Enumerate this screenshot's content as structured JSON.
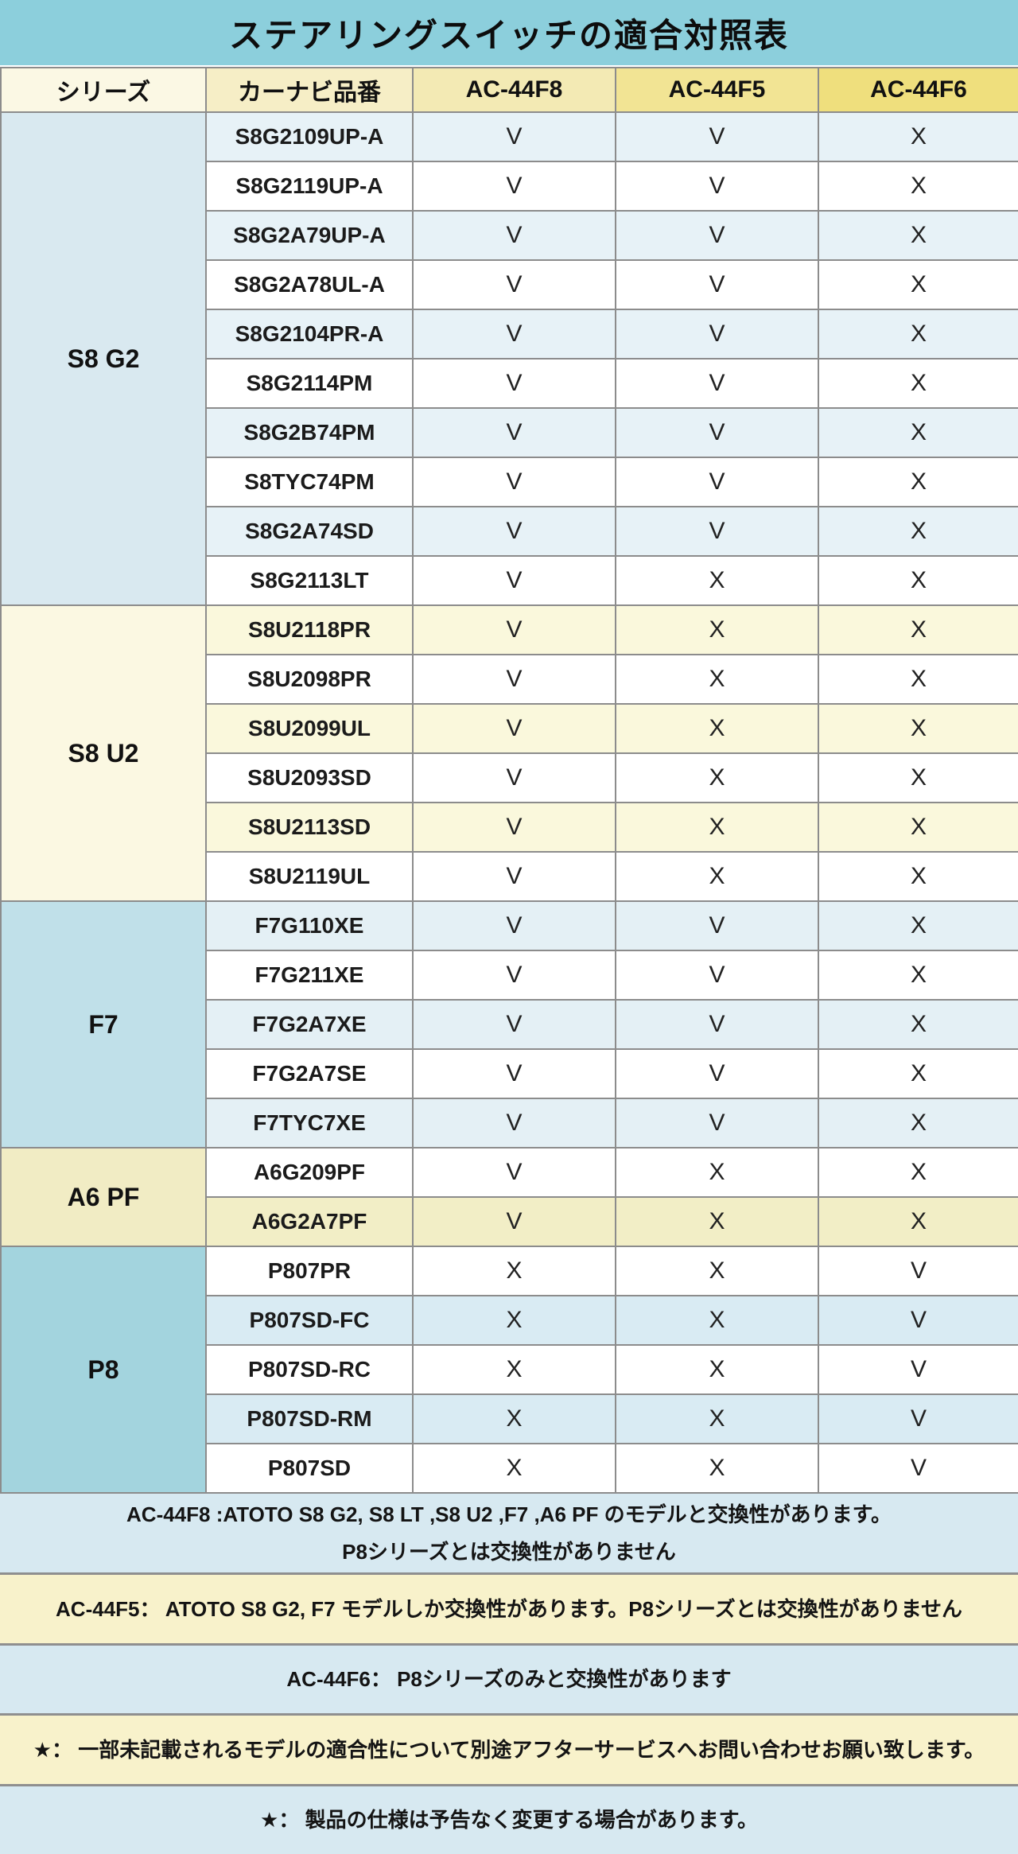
{
  "title": "ステアリングスイッチの適合対照表",
  "columns": [
    "シリーズ",
    "カーナビ品番",
    "AC-44F8",
    "AC-44F5",
    "AC-44F6"
  ],
  "colors": {
    "title_bar": "#8ccfdc",
    "header_cells": [
      "#fbf8e4",
      "#f6eec6",
      "#f3eab4",
      "#f2e494",
      "#efdf7d"
    ],
    "note_blue": "#d7e9f1",
    "note_cream": "#f8f2cb"
  },
  "groups": [
    {
      "series": "S8 G2",
      "group_color": "#d9e9f0",
      "stripe_color": "#e7f2f7",
      "stripe_first": true,
      "rows": [
        {
          "model": "S8G2109UP-A",
          "values": [
            "V",
            "V",
            "X"
          ]
        },
        {
          "model": "S8G2119UP-A",
          "values": [
            "V",
            "V",
            "X"
          ]
        },
        {
          "model": "S8G2A79UP-A",
          "values": [
            "V",
            "V",
            "X"
          ]
        },
        {
          "model": "S8G2A78UL-A",
          "values": [
            "V",
            "V",
            "X"
          ]
        },
        {
          "model": "S8G2104PR-A",
          "values": [
            "V",
            "V",
            "X"
          ]
        },
        {
          "model": "S8G2114PM",
          "values": [
            "V",
            "V",
            "X"
          ]
        },
        {
          "model": "S8G2B74PM",
          "values": [
            "V",
            "V",
            "X"
          ]
        },
        {
          "model": "S8TYC74PM",
          "values": [
            "V",
            "V",
            "X"
          ]
        },
        {
          "model": "S8G2A74SD",
          "values": [
            "V",
            "V",
            "X"
          ]
        },
        {
          "model": "S8G2113LT",
          "values": [
            "V",
            "X",
            "X"
          ]
        }
      ]
    },
    {
      "series": "S8 U2",
      "group_color": "#fbf8e2",
      "stripe_color": "#faf8dc",
      "stripe_first": true,
      "rows": [
        {
          "model": "S8U2118PR",
          "values": [
            "V",
            "X",
            "X"
          ]
        },
        {
          "model": "S8U2098PR",
          "values": [
            "V",
            "X",
            "X"
          ]
        },
        {
          "model": "S8U2099UL",
          "values": [
            "V",
            "X",
            "X"
          ]
        },
        {
          "model": "S8U2093SD",
          "values": [
            "V",
            "X",
            "X"
          ]
        },
        {
          "model": "S8U2113SD",
          "values": [
            "V",
            "X",
            "X"
          ]
        },
        {
          "model": "S8U2119UL",
          "values": [
            "V",
            "X",
            "X"
          ]
        }
      ]
    },
    {
      "series": "F7",
      "group_color": "#c0e0e9",
      "stripe_color": "#e4f0f5",
      "stripe_first": true,
      "rows": [
        {
          "model": "F7G110XE",
          "values": [
            "V",
            "V",
            "X"
          ]
        },
        {
          "model": "F7G211XE",
          "values": [
            "V",
            "V",
            "X"
          ]
        },
        {
          "model": "F7G2A7XE",
          "values": [
            "V",
            "V",
            "X"
          ]
        },
        {
          "model": "F7G2A7SE",
          "values": [
            "V",
            "V",
            "X"
          ]
        },
        {
          "model": "F7TYC7XE",
          "values": [
            "V",
            "V",
            "X"
          ]
        }
      ]
    },
    {
      "series": "A6 PF",
      "group_color": "#f1ecc4",
      "stripe_color": "#f2eec6",
      "stripe_first": false,
      "rows": [
        {
          "model": "A6G209PF",
          "values": [
            "V",
            "X",
            "X"
          ]
        },
        {
          "model": "A6G2A7PF",
          "values": [
            "V",
            "X",
            "X"
          ]
        }
      ]
    },
    {
      "series": "P8",
      "group_color": "#a3d4de",
      "stripe_color": "#d9ebf3",
      "stripe_first": false,
      "rows": [
        {
          "model": "P807PR",
          "values": [
            "X",
            "X",
            "V"
          ]
        },
        {
          "model": "P807SD-FC",
          "values": [
            "X",
            "X",
            "V"
          ]
        },
        {
          "model": "P807SD-RC",
          "values": [
            "X",
            "X",
            "V"
          ]
        },
        {
          "model": "P807SD-RM",
          "values": [
            "X",
            "X",
            "V"
          ]
        },
        {
          "model": "P807SD",
          "values": [
            "X",
            "X",
            "V"
          ]
        }
      ]
    }
  ],
  "notes": [
    {
      "style": "blue",
      "lines": [
        "AC-44F8 :ATOTO S8 G2, S8 LT ,S8 U2 ,F7 ,A6 PF のモデルと交換性があります。",
        "P8シリーズとは交換性がありません"
      ]
    },
    {
      "style": "cream",
      "lines": [
        "AC-44F5： ATOTO S8 G2, F7 モデルしか交換性があります。P8シリーズとは交換性がありません"
      ]
    },
    {
      "style": "blue",
      "lines": [
        "AC-44F6： P8シリーズのみと交換性があります"
      ]
    },
    {
      "style": "cream",
      "lines": [
        "★： 一部未記載されるモデルの適合性について別途アフターサービスへお問い合わせお願い致します。"
      ]
    },
    {
      "style": "blue",
      "lines": [
        "★： 製品の仕様は予告なく変更する場合があります。"
      ]
    }
  ]
}
